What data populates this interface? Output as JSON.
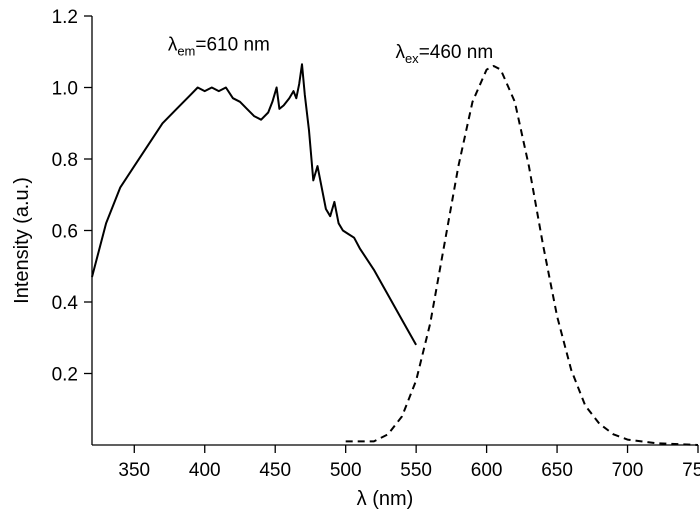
{
  "chart_data": {
    "type": "line",
    "xlabel": "λ  (nm)",
    "ylabel": "Intensity (a.u.)",
    "xlim": [
      320,
      750
    ],
    "ylim": [
      0,
      1.2
    ],
    "x_ticks": [
      350,
      400,
      450,
      500,
      550,
      600,
      650,
      700,
      750
    ],
    "y_ticks": [
      0.2,
      0.4,
      0.6,
      0.8,
      1.0,
      1.2
    ],
    "x_tick_labels": [
      "350",
      "400",
      "450",
      "500",
      "550",
      "600",
      "650",
      "700",
      "750"
    ],
    "y_tick_labels": [
      "0.2",
      "0.4",
      "0.6",
      "0.8",
      "1.0",
      "1.2"
    ],
    "grid": false,
    "legend": "none",
    "annotations": [
      {
        "symbol": "λ",
        "sub": "em",
        "text": "=610 nm",
        "x": 410,
        "y": 1.12
      },
      {
        "symbol": "λ",
        "sub": "ex",
        "text": "=460 nm",
        "x": 570,
        "y": 1.1
      }
    ],
    "series": [
      {
        "style": "solid",
        "color": "#000000",
        "x": [
          320,
          330,
          340,
          350,
          360,
          370,
          380,
          390,
          395,
          400,
          405,
          410,
          415,
          420,
          425,
          430,
          435,
          440,
          445,
          448,
          451,
          453,
          456,
          460,
          463,
          465,
          467,
          469,
          471,
          474,
          477,
          480,
          483,
          486,
          489,
          492,
          495,
          498,
          502,
          506,
          510,
          520,
          530,
          540,
          550
        ],
        "y": [
          0.47,
          0.62,
          0.72,
          0.78,
          0.84,
          0.9,
          0.94,
          0.98,
          1.0,
          0.99,
          1.0,
          0.99,
          1.0,
          0.97,
          0.96,
          0.94,
          0.92,
          0.91,
          0.93,
          0.96,
          1.0,
          0.94,
          0.95,
          0.97,
          0.99,
          0.97,
          1.01,
          1.065,
          0.98,
          0.88,
          0.74,
          0.78,
          0.72,
          0.66,
          0.64,
          0.68,
          0.62,
          0.6,
          0.59,
          0.58,
          0.55,
          0.49,
          0.42,
          0.35,
          0.28
        ]
      },
      {
        "style": "dashed",
        "color": "#000000",
        "x": [
          500,
          520,
          530,
          540,
          550,
          560,
          570,
          580,
          590,
          600,
          605,
          610,
          620,
          630,
          640,
          650,
          660,
          670,
          680,
          690,
          700,
          720,
          750
        ],
        "y": [
          0.01,
          0.01,
          0.03,
          0.08,
          0.18,
          0.34,
          0.56,
          0.78,
          0.96,
          1.05,
          1.06,
          1.05,
          0.96,
          0.78,
          0.56,
          0.36,
          0.21,
          0.11,
          0.06,
          0.03,
          0.015,
          0.005,
          0.0
        ]
      }
    ]
  }
}
